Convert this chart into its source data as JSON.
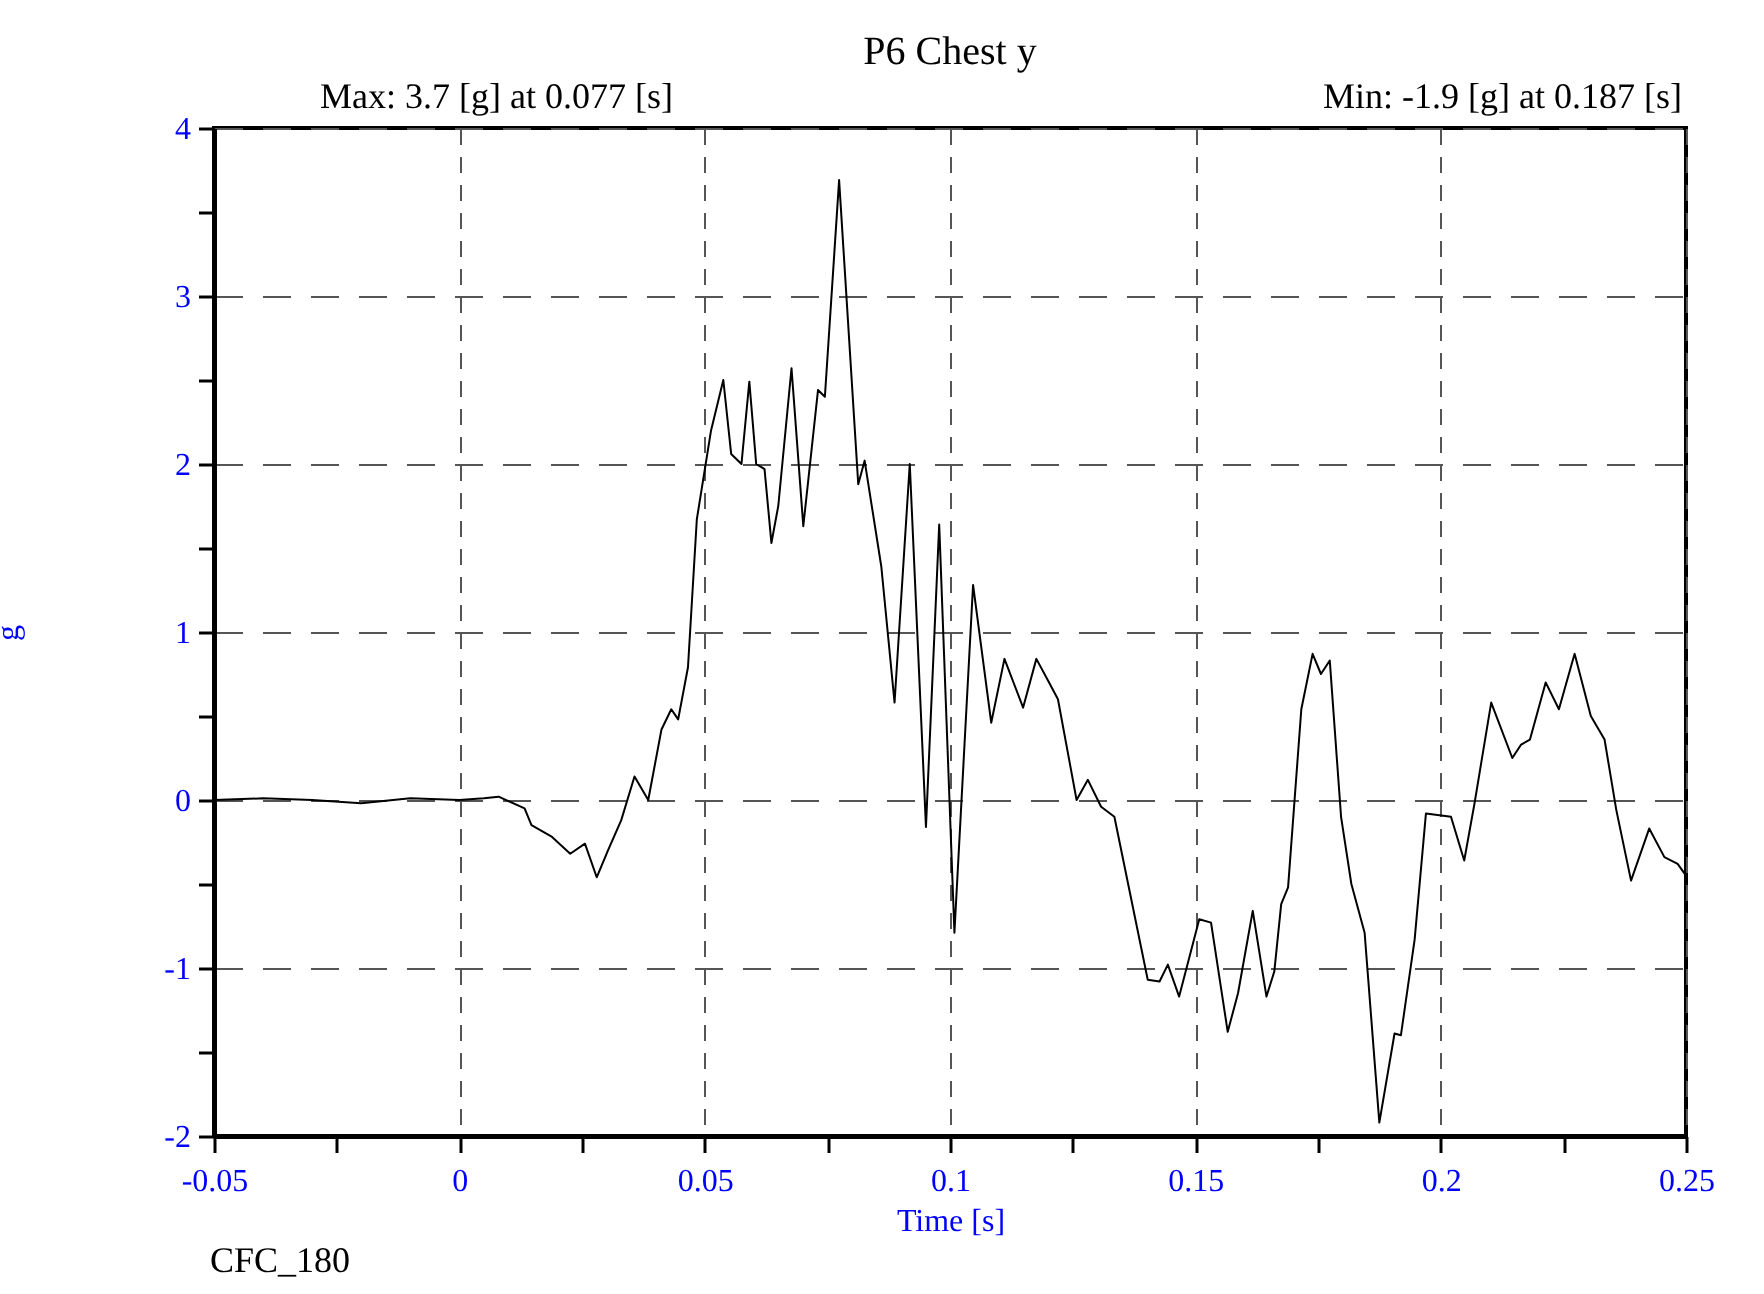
{
  "chart_data": {
    "type": "line",
    "title": "P6 Chest y",
    "xlabel": "Time [s]",
    "ylabel": "g",
    "annotations": [
      "Max: 3.7 [g] at 0.077 [s]",
      "Min: -1.9 [g] at 0.187 [s]",
      "CFC_180"
    ],
    "xlim": [
      -0.05,
      0.25
    ],
    "ylim": [
      -2,
      4
    ],
    "xticks": [
      -0.05,
      {
        "value": -0.025,
        "label": null
      },
      0,
      {
        "value": 0.025,
        "label": null
      },
      0.05,
      {
        "value": 0.075,
        "label": null
      },
      0.1,
      {
        "value": 0.125,
        "label": null
      },
      0.15,
      {
        "value": 0.175,
        "label": null
      },
      0.2,
      {
        "value": 0.225,
        "label": null
      },
      0.25
    ],
    "yticks": [
      -2,
      {
        "value": -1.5,
        "label": null
      },
      -1,
      {
        "value": -0.5,
        "label": null
      },
      0,
      {
        "value": 0.5,
        "label": null
      },
      1,
      {
        "value": 1.5,
        "label": null
      },
      2,
      {
        "value": 2.5,
        "label": null
      },
      3,
      {
        "value": 3.5,
        "label": null
      },
      4
    ],
    "grid": true,
    "marker": "none",
    "line_style": "solid",
    "series": [
      {
        "color": "#000000",
        "x": [
          -0.05,
          -0.04,
          -0.03,
          -0.02,
          -0.01,
          0,
          0.005,
          0.008,
          0.0133,
          0.0147,
          0.0189,
          0.0226,
          0.0256,
          0.028,
          0.0303,
          0.033,
          0.0357,
          0.0385,
          0.0412,
          0.0432,
          0.0446,
          0.0466,
          0.0484,
          0.0513,
          0.0538,
          0.0554,
          0.0575,
          0.0591,
          0.0605,
          0.0622,
          0.0636,
          0.065,
          0.0677,
          0.0701,
          0.0731,
          0.0745,
          0.0774,
          0.0813,
          0.0826,
          0.086,
          0.0887,
          0.0918,
          0.0951,
          0.0978,
          0.1009,
          0.1047,
          0.1084,
          0.1111,
          0.1149,
          0.1176,
          0.12,
          0.122,
          0.1258,
          0.1281,
          0.1308,
          0.1335,
          0.1403,
          0.1427,
          0.1444,
          0.1467,
          0.1508,
          0.1532,
          0.1566,
          0.1587,
          0.1617,
          0.1645,
          0.1661,
          0.1675,
          0.1689,
          0.1716,
          0.1739,
          0.1756,
          0.1774,
          0.1797,
          0.1818,
          0.1845,
          0.1875,
          0.1906,
          0.1919,
          0.1947,
          0.197,
          0.2021,
          0.2048,
          0.2069,
          0.2103,
          0.2146,
          0.2164,
          0.2182,
          0.2214,
          0.2241,
          0.2273,
          0.2306,
          0.2334,
          0.2358,
          0.2388,
          0.2425,
          0.2456,
          0.2483,
          0.25
        ],
        "values": [
          0,
          0.01,
          0,
          -0.02,
          0.01,
          0,
          0.01,
          0.02,
          -0.05,
          -0.15,
          -0.22,
          -0.32,
          -0.26,
          -0.46,
          -0.3,
          -0.12,
          0.14,
          0,
          0.42,
          0.54,
          0.48,
          0.79,
          1.67,
          2.2,
          2.5,
          2.06,
          2,
          2.49,
          2,
          1.97,
          1.53,
          1.75,
          2.57,
          1.63,
          2.44,
          2.4,
          3.69,
          1.88,
          2.02,
          1.39,
          0.58,
          2,
          -0.16,
          1.64,
          -0.79,
          1.28,
          0.46,
          0.84,
          0.55,
          0.84,
          0.71,
          0.6,
          0,
          0.12,
          -0.04,
          -0.1,
          -1.07,
          -1.08,
          -0.98,
          -1.17,
          -0.71,
          -0.73,
          -1.38,
          -1.15,
          -0.66,
          -1.17,
          -1.02,
          -0.62,
          -0.52,
          0.54,
          0.87,
          0.75,
          0.83,
          -0.1,
          -0.5,
          -0.79,
          -1.92,
          -1.39,
          -1.4,
          -0.83,
          -0.08,
          -0.1,
          -0.36,
          -0.02,
          0.58,
          0.25,
          0.33,
          0.36,
          0.7,
          0.54,
          0.87,
          0.5,
          0.36,
          -0.06,
          -0.48,
          -0.17,
          -0.34,
          -0.38,
          -0.45
        ]
      }
    ]
  }
}
